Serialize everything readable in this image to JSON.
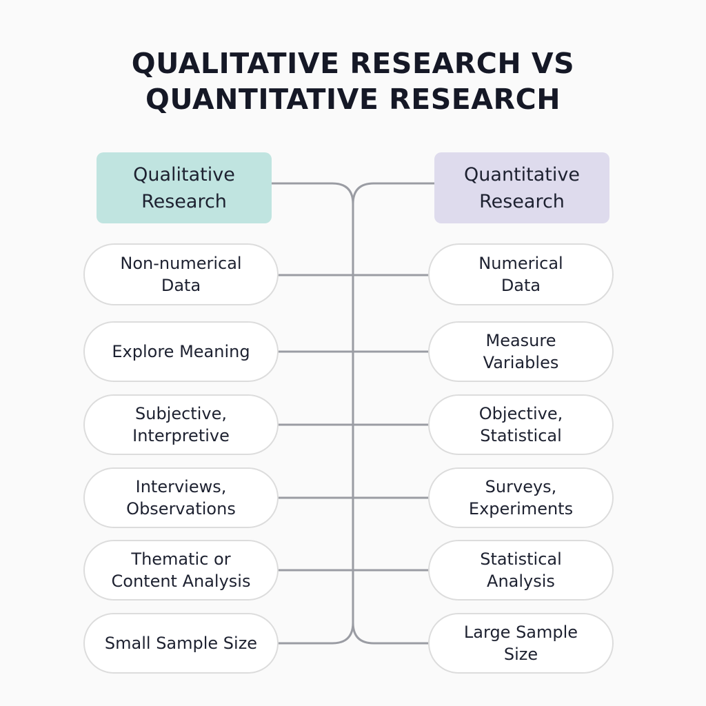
{
  "title": {
    "line1": "QUALITATIVE RESEARCH VS",
    "line2": "QUANTITATIVE RESEARCH"
  },
  "qualitative": {
    "header": "Qualitative\nResearch",
    "color": "#c0e4e0",
    "items": [
      "Non-numerical\nData",
      "Explore Meaning",
      "Subjective,\nInterpretive",
      "Interviews,\nObservations",
      "Thematic or\nContent Analysis",
      "Small Sample Size"
    ]
  },
  "quantitative": {
    "header": "Quantitative\nResearch",
    "color": "#dedbed",
    "items": [
      "Numerical\nData",
      "Measure\nVariables",
      "Objective,\nStatistical",
      "Surveys,\nExperiments",
      "Statistical\nAnalysis",
      "Large Sample\nSize"
    ]
  },
  "connector_color": "#9a9ca3"
}
